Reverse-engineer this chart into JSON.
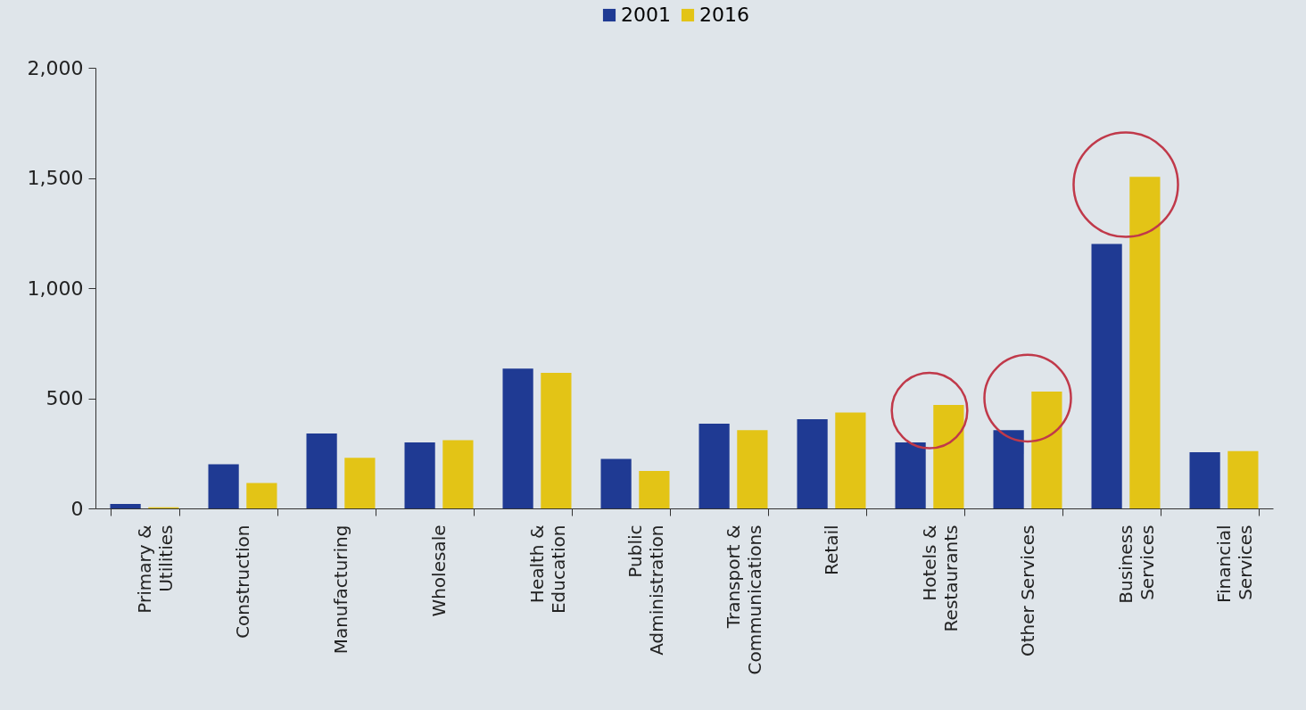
{
  "chart_data": {
    "type": "bar",
    "categories": [
      "Primary &\nUtilities",
      "Construction",
      "Manufacturing",
      "Wholesale",
      "Health &\nEducation",
      "Public\nAdministration",
      "Transport &\nCommunications",
      "Retail",
      "Hotels &\nRestaurants",
      "Other Services",
      "Business\nServices",
      "Financial\nServices"
    ],
    "series": [
      {
        "name": "2001",
        "color": "#1f3a93",
        "values": [
          20,
          200,
          340,
          300,
          635,
          225,
          385,
          405,
          300,
          355,
          1200,
          255
        ]
      },
      {
        "name": "2016",
        "color": "#e3c416",
        "values": [
          5,
          115,
          230,
          310,
          615,
          170,
          355,
          435,
          470,
          530,
          1505,
          260
        ]
      }
    ],
    "ylim": [
      0,
      2000
    ],
    "yticks": [
      0,
      500,
      {
        "value": 1000,
        "label": "1,000"
      },
      {
        "value": 1500,
        "label": "1,500"
      },
      {
        "value": 2000,
        "label": "2,000"
      }
    ],
    "grid": false,
    "legend": "top"
  }
}
